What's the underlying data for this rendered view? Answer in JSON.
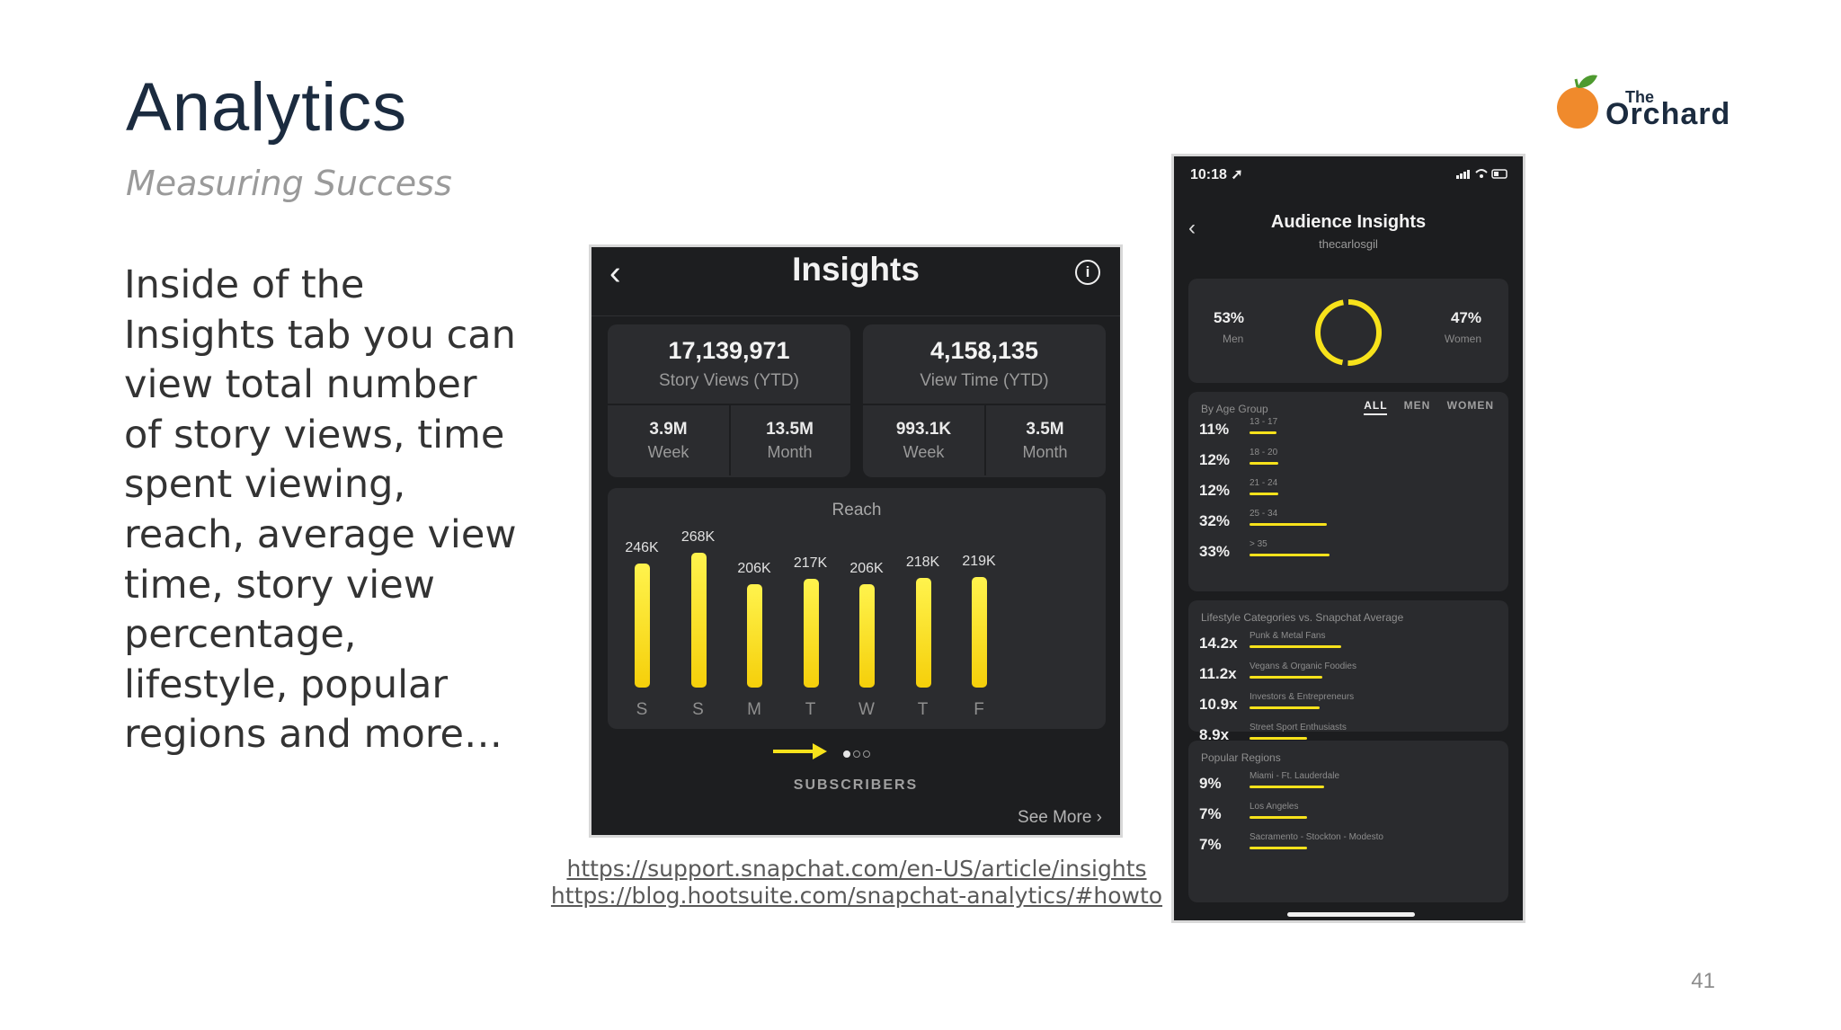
{
  "slide": {
    "title": "Analytics",
    "subtitle": "Measuring Success",
    "body": "Inside of the Insights tab you can view total number of story views, time spent viewing, reach, average view time, story view percentage, lifestyle, popular regions and more…",
    "logo_small": "The",
    "logo_big": "Orchard",
    "page_number": "41",
    "links": [
      "https://support.snapchat.com/en-US/article/insights",
      "https://blog.hootsuite.com/snapchat-analytics/#howto"
    ]
  },
  "insights": {
    "title": "Insights",
    "back_icon": "chevron-left-icon",
    "info_icon": "info-icon",
    "story_views": {
      "value": "17,139,971",
      "label": "Story Views (YTD)",
      "week_value": "3.9M",
      "week_label": "Week",
      "month_value": "13.5M",
      "month_label": "Month"
    },
    "view_time": {
      "value": "4,158,135",
      "label": "View Time (YTD)",
      "week_value": "993.1K",
      "week_label": "Week",
      "month_value": "3.5M",
      "month_label": "Month"
    },
    "reach": {
      "title": "Reach",
      "bars": [
        {
          "day": "S",
          "label": "246K",
          "value": 246
        },
        {
          "day": "S",
          "label": "268K",
          "value": 268
        },
        {
          "day": "M",
          "label": "206K",
          "value": 206
        },
        {
          "day": "T",
          "label": "217K",
          "value": 217
        },
        {
          "day": "W",
          "label": "206K",
          "value": 206
        },
        {
          "day": "T",
          "label": "218K",
          "value": 218
        },
        {
          "day": "F",
          "label": "219K",
          "value": 219
        }
      ]
    },
    "subscribers_label": "SUBSCRIBERS",
    "see_more": "See More ›",
    "accent_color": "#f7e21b"
  },
  "audience": {
    "time": "10:18 ➚",
    "title": "Audience Insights",
    "username": "thecarlosgil",
    "gender": {
      "men_pct": "53%",
      "men_label": "Men",
      "women_pct": "47%",
      "women_label": "Women",
      "men_fraction": 0.53
    },
    "age": {
      "title": "By Age Group",
      "tabs": [
        "ALL",
        "MEN",
        "WOMEN"
      ],
      "rows": [
        {
          "value": "11%",
          "label": "13 - 17",
          "fraction": 0.11
        },
        {
          "value": "12%",
          "label": "18 - 20",
          "fraction": 0.12
        },
        {
          "value": "12%",
          "label": "21 - 24",
          "fraction": 0.12
        },
        {
          "value": "32%",
          "label": "25 - 34",
          "fraction": 0.32
        },
        {
          "value": "33%",
          "label": "> 35",
          "fraction": 0.33
        }
      ]
    },
    "lifestyle": {
      "title": "Lifestyle Categories vs. Snapchat Average",
      "rows": [
        {
          "value": "14.2x",
          "label": "Punk & Metal Fans",
          "fraction": 0.142
        },
        {
          "value": "11.2x",
          "label": "Vegans & Organic Foodies",
          "fraction": 0.112
        },
        {
          "value": "10.9x",
          "label": "Investors & Entrepreneurs",
          "fraction": 0.109
        },
        {
          "value": "8.9x",
          "label": "Street Sport Enthusiasts",
          "fraction": 0.089
        }
      ]
    },
    "regions": {
      "title": "Popular Regions",
      "rows": [
        {
          "value": "9%",
          "label": "Miami - Ft. Lauderdale",
          "fraction": 0.09
        },
        {
          "value": "7%",
          "label": "Los Angeles",
          "fraction": 0.07
        },
        {
          "value": "7%",
          "label": "Sacramento - Stockton - Modesto",
          "fraction": 0.07
        }
      ]
    }
  }
}
